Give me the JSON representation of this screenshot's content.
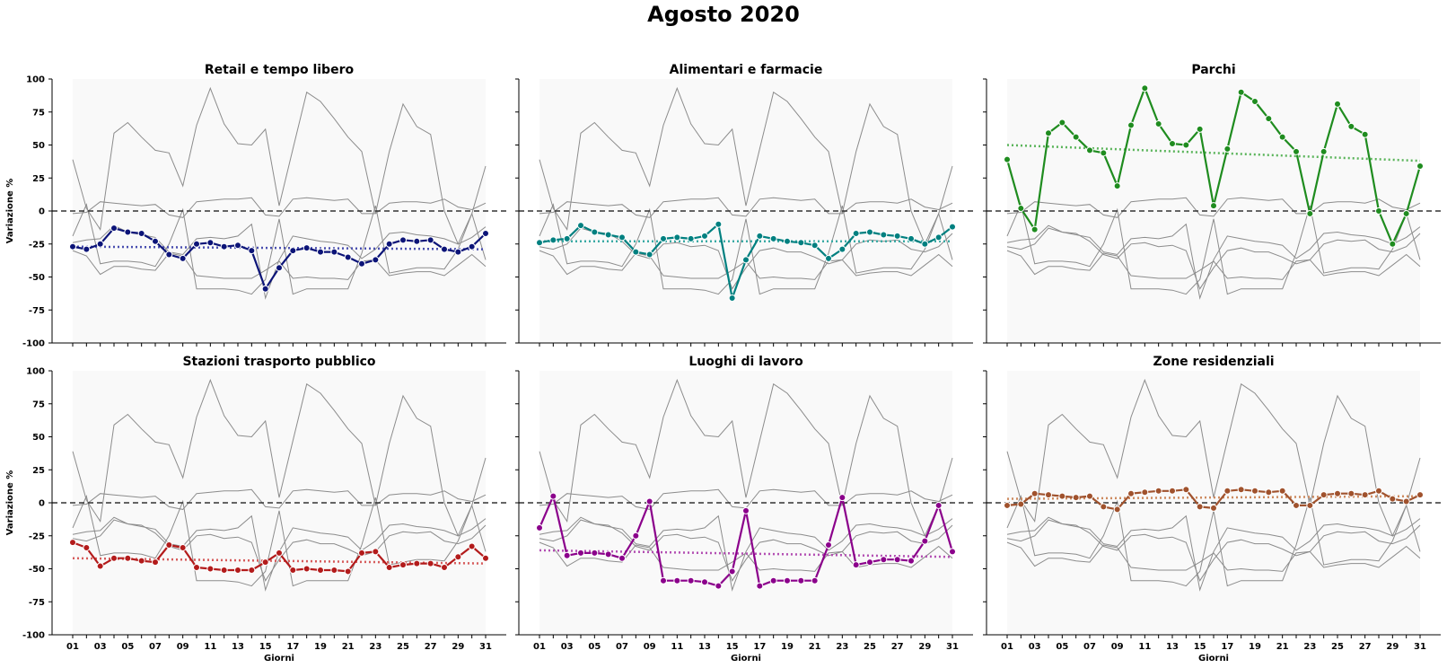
{
  "title": "Agosto 2020",
  "colors": {
    "background_region": "#f9f9f9",
    "context_lines": "#8c8c8c",
    "zero_line": "#333333"
  },
  "chart_data": {
    "type": "line",
    "suptitle": "Agosto 2020",
    "days": [
      "01",
      "02",
      "03",
      "04",
      "05",
      "06",
      "07",
      "08",
      "09",
      "10",
      "11",
      "12",
      "13",
      "14",
      "15",
      "16",
      "17",
      "18",
      "19",
      "20",
      "21",
      "22",
      "23",
      "24",
      "25",
      "26",
      "27",
      "28",
      "29",
      "30",
      "31"
    ],
    "xtick_labels": [
      "01",
      "03",
      "05",
      "07",
      "09",
      "11",
      "13",
      "15",
      "17",
      "19",
      "21",
      "23",
      "25",
      "27",
      "29",
      "31"
    ],
    "xlabel": "Giorni",
    "ylabel": "Variazione %",
    "ylim": [
      -100,
      100
    ],
    "yticks": [
      -100,
      -75,
      -50,
      -25,
      0,
      25,
      50,
      75,
      100
    ],
    "reference_line": 0,
    "trend": "dotted linear trend line per panel",
    "grid": false,
    "series": [
      {
        "name": "Retail e tempo libero",
        "color": "#0c1478",
        "trend_color": "#4a4fb0",
        "values": [
          -27,
          -29,
          -25,
          -13,
          -16,
          -17,
          -23,
          -33,
          -36,
          -25,
          -24,
          -27,
          -26,
          -30,
          -59,
          -43,
          -30,
          -28,
          -31,
          -31,
          -35,
          -40,
          -37,
          -25,
          -22,
          -23,
          -22,
          -29,
          -31,
          -27,
          -17
        ],
        "trend": [
          -27,
          -29
        ]
      },
      {
        "name": "Alimentari e farmacie",
        "color": "#008080",
        "trend_color": "#3aaaa4",
        "values": [
          -24,
          -22,
          -21,
          -11,
          -16,
          -18,
          -20,
          -31,
          -33,
          -21,
          -20,
          -21,
          -19,
          -10,
          -66,
          -37,
          -19,
          -21,
          -23,
          -24,
          -26,
          -36,
          -29,
          -17,
          -16,
          -18,
          -19,
          -21,
          -25,
          -20,
          -12
        ],
        "trend": [
          -23,
          -23
        ]
      },
      {
        "name": "Parchi",
        "color": "#1f8c1f",
        "trend_color": "#5ab45a",
        "values": [
          39,
          2,
          -14,
          59,
          67,
          56,
          46,
          44,
          19,
          65,
          93,
          66,
          51,
          50,
          62,
          4,
          47,
          90,
          83,
          70,
          56,
          45,
          -2,
          45,
          81,
          64,
          58,
          0,
          -25,
          -2,
          34
        ],
        "trend": [
          50,
          38
        ]
      },
      {
        "name": "Stazioni trasporto pubblico",
        "color": "#b31b1b",
        "trend_color": "#d65a5a",
        "values": [
          -30,
          -34,
          -48,
          -42,
          -42,
          -44,
          -45,
          -32,
          -34,
          -49,
          -50,
          -51,
          -51,
          -51,
          -45,
          -38,
          -51,
          -50,
          -51,
          -51,
          -52,
          -38,
          -37,
          -49,
          -47,
          -46,
          -46,
          -49,
          -41,
          -33,
          -42
        ],
        "trend": [
          -42,
          -46
        ]
      },
      {
        "name": "Luoghi di lavoro",
        "color": "#8b008b",
        "trend_color": "#b24db2",
        "values": [
          -19,
          5,
          -40,
          -38,
          -38,
          -39,
          -42,
          -25,
          1,
          -59,
          -59,
          -59,
          -60,
          -63,
          -52,
          -6,
          -63,
          -59,
          -59,
          -59,
          -59,
          -32,
          4,
          -47,
          -45,
          -43,
          -43,
          -44,
          -29,
          -2,
          -37
        ],
        "trend": [
          -36,
          -41
        ]
      },
      {
        "name": "Zone residenziali",
        "color": "#a0522d",
        "trend_color": "#cd8a5f",
        "values": [
          -2,
          -1,
          7,
          6,
          5,
          4,
          5,
          -3,
          -5,
          7,
          8,
          9,
          9,
          10,
          -3,
          -4,
          9,
          10,
          9,
          8,
          9,
          -2,
          -2,
          6,
          7,
          7,
          6,
          9,
          3,
          1,
          6
        ],
        "trend": [
          3,
          5
        ]
      }
    ]
  }
}
